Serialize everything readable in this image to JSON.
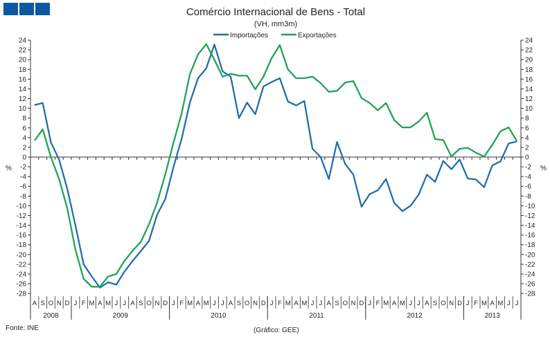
{
  "logo": {
    "color": "#0d58a0"
  },
  "chart_data": {
    "type": "line",
    "title": "Comércio Internacional de Bens - Total",
    "subtitle": "(VH, mm3m)",
    "ylabel": "%",
    "ylim": [
      -28,
      24
    ],
    "yticks": [
      24,
      22,
      20,
      18,
      16,
      14,
      12,
      10,
      8,
      6,
      4,
      2,
      0,
      -2,
      -4,
      -6,
      -8,
      -10,
      -12,
      -14,
      -16,
      -18,
      -20,
      -22,
      -24,
      -26,
      -28
    ],
    "grid": false,
    "legend": "top-center",
    "months": [
      "A",
      "S",
      "O",
      "N",
      "D",
      "J",
      "F",
      "M",
      "A",
      "M",
      "J",
      "J",
      "A",
      "S",
      "O",
      "N",
      "D",
      "J",
      "F",
      "M",
      "A",
      "M",
      "J",
      "J",
      "A",
      "S",
      "O",
      "N",
      "D",
      "J",
      "F",
      "M",
      "A",
      "M",
      "J",
      "J",
      "A",
      "S",
      "O",
      "N",
      "D",
      "J",
      "F",
      "M",
      "A",
      "M",
      "J",
      "J",
      "A",
      "S",
      "O",
      "N",
      "D",
      "J",
      "F",
      "M",
      "A",
      "M",
      "J",
      "J"
    ],
    "years": [
      {
        "label": "2008",
        "months": 5
      },
      {
        "label": "2009",
        "months": 12
      },
      {
        "label": "2010",
        "months": 12
      },
      {
        "label": "2011",
        "months": 12
      },
      {
        "label": "2012",
        "months": 12
      },
      {
        "label": "2013",
        "months": 7
      }
    ],
    "series": [
      {
        "name": "Importações",
        "color": "#1f6fad",
        "values": [
          10.7,
          11.1,
          3,
          -0.5,
          -6.5,
          -14,
          -22,
          -24.5,
          -26.8,
          -25.7,
          -26.2,
          -23.5,
          -21.3,
          -19.3,
          -17.2,
          -11.8,
          -8.6,
          -2,
          3.8,
          11.2,
          16.2,
          18.2,
          23.1,
          17.6,
          16.5,
          8,
          11.2,
          8.8,
          14.5,
          15.4,
          16.2,
          11.4,
          10.6,
          11.5,
          1.7,
          0,
          -4.5,
          3.1,
          -1.4,
          -3.6,
          -10.2,
          -7.6,
          -6.8,
          -4.5,
          -9.4,
          -11.1,
          -10,
          -7.7,
          -3.6,
          -5.1,
          -0.8,
          -2.5,
          -0.5,
          -4.4,
          -4.6,
          -6.2,
          -1.7,
          -0.9,
          2.8,
          3.2
        ]
      },
      {
        "name": "Exportações",
        "color": "#1fa355",
        "values": [
          3.4,
          5.7,
          0,
          -4.5,
          -10.5,
          -19,
          -25,
          -26.6,
          -26.6,
          -24.5,
          -24,
          -21.3,
          -19.2,
          -17.4,
          -13.8,
          -9.3,
          -3.5,
          3,
          9,
          17,
          21.1,
          23.2,
          20,
          16.5,
          17.1,
          16.7,
          16.7,
          13.9,
          16.5,
          20.3,
          23,
          18,
          16.2,
          16.2,
          16.5,
          15.2,
          13.4,
          13.6,
          15.3,
          15.6,
          12.1,
          11.1,
          9.6,
          11.1,
          7.6,
          6.1,
          6.1,
          7.3,
          9.1,
          3.7,
          3.5,
          0.1,
          1.7,
          1.9,
          0.9,
          0.1,
          2.5,
          5.3,
          6.1,
          3.3
        ]
      }
    ]
  },
  "footer": {
    "source": "Fonte: INE",
    "credit": "(Gráfico: GEE)"
  }
}
